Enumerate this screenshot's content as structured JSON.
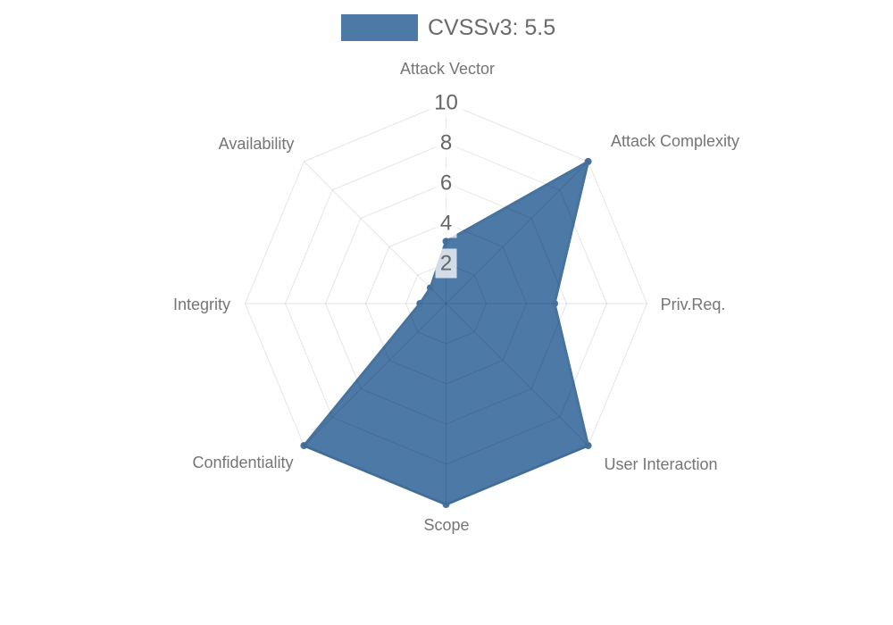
{
  "legend": {
    "label": "CVSSv3: 5.5"
  },
  "chart_data": {
    "type": "radar",
    "title": "",
    "categories": [
      "Attack Vector",
      "Attack Complexity",
      "Priv.Req.",
      "User Interaction",
      "Scope",
      "Confidentiality",
      "Integrity",
      "Availability"
    ],
    "series": [
      {
        "name": "CVSSv3: 5.5",
        "values": [
          3.1,
          10,
          5.4,
          10,
          10,
          10,
          1.3,
          1.1
        ]
      }
    ],
    "ticks": [
      2,
      4,
      6,
      8,
      10
    ],
    "rmin": 0,
    "rmax": 10,
    "grid": true,
    "grid_shape": "polygon",
    "legend_position": "top",
    "colors": {
      "fill": "#4d79a7",
      "border": "#47739f",
      "marker": "#47739f",
      "grid": "rgba(0,0,0,0.10)",
      "tick_text": "#666666",
      "tick_backdrop": "rgba(255,255,255,0.75)",
      "axis_label": "#757575",
      "legend_text": "#6a6a6a"
    }
  }
}
